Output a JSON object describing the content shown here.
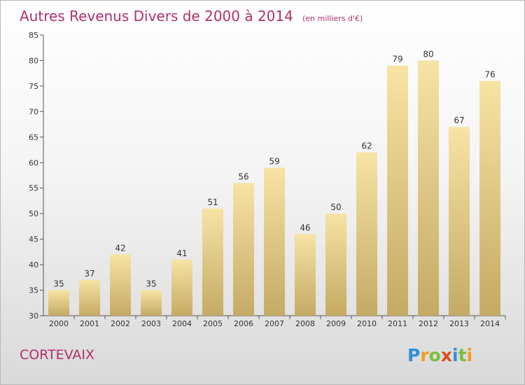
{
  "chart_data": {
    "type": "bar",
    "title": "Autres Revenus Divers de 2000 à 2014",
    "subtitle": "(en milliers d'€)",
    "categories": [
      "2000",
      "2001",
      "2002",
      "2003",
      "2004",
      "2005",
      "2006",
      "2007",
      "2008",
      "2009",
      "2010",
      "2011",
      "2012",
      "2013",
      "2014"
    ],
    "values": [
      35,
      37,
      42,
      35,
      41,
      51,
      56,
      59,
      46,
      50,
      62,
      79,
      80,
      67,
      76
    ],
    "ylim": [
      30,
      85
    ],
    "yticks": [
      30,
      35,
      40,
      45,
      50,
      55,
      60,
      65,
      70,
      75,
      80,
      85
    ],
    "grid": false,
    "xlabel": "",
    "ylabel": "",
    "colors": {
      "bar_light": "#f7e3a4",
      "bar_dark": "#c4aa64",
      "title": "#b0306a"
    }
  },
  "commune": "CORTEVAIX",
  "logo": {
    "letters": [
      "P",
      "r",
      "o",
      "x",
      "i",
      "t",
      "i"
    ],
    "colors": [
      "#2f8fd8",
      "#f39a1e",
      "#7bbf3a",
      "#e04a1c",
      "#2f8fd8",
      "#7bbf3a",
      "#f39a1e"
    ]
  }
}
